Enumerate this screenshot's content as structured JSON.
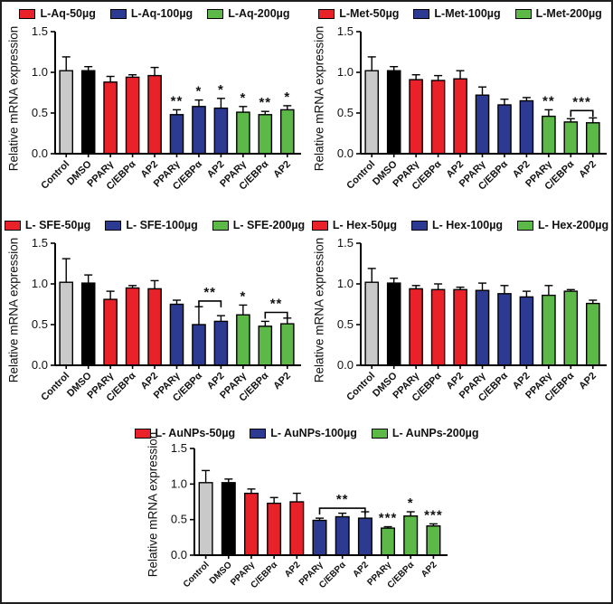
{
  "figure": {
    "background": "#ffffff",
    "border_color": "#1f1f1f"
  },
  "palette": {
    "control": "#c9c9c9",
    "dmso": "#000000",
    "dose50": "#e92128",
    "dose100": "#2c3a92",
    "dose200": "#5cb947",
    "axis": "#000000",
    "error_bar": "#000000"
  },
  "chart_data": [
    {
      "type": "bar",
      "title": "",
      "position": "top-left",
      "ylabel": "Relative mRNA expression",
      "ylim": [
        0,
        1.5
      ],
      "yticks": [
        0.0,
        0.5,
        1.0,
        1.5
      ],
      "grid": false,
      "legend_position": "top",
      "legend": [
        {
          "label": "L-Aq-50µg",
          "color_key": "dose50"
        },
        {
          "label": "L-Aq-100µg",
          "color_key": "dose100"
        },
        {
          "label": "L-Aq-200µg",
          "color_key": "dose200"
        }
      ],
      "categories": [
        "Control",
        "DMSO",
        "PPARγ",
        "C/EBPα",
        "AP2",
        "PPARγ",
        "C/EBPα",
        "AP2",
        "PPARγ",
        "C/EBPα",
        "AP2"
      ],
      "bars": [
        {
          "category": "Control",
          "group": "control",
          "value": 1.02,
          "err": 0.17,
          "sig": ""
        },
        {
          "category": "DMSO",
          "group": "dmso",
          "value": 1.02,
          "err": 0.05,
          "sig": ""
        },
        {
          "category": "PPARγ",
          "group": "dose50",
          "value": 0.88,
          "err": 0.07,
          "sig": ""
        },
        {
          "category": "C/EBPα",
          "group": "dose50",
          "value": 0.94,
          "err": 0.03,
          "sig": ""
        },
        {
          "category": "AP2",
          "group": "dose50",
          "value": 0.96,
          "err": 0.1,
          "sig": ""
        },
        {
          "category": "PPARγ",
          "group": "dose100",
          "value": 0.48,
          "err": 0.06,
          "sig": "**"
        },
        {
          "category": "C/EBPα",
          "group": "dose100",
          "value": 0.58,
          "err": 0.08,
          "sig": "*"
        },
        {
          "category": "AP2",
          "group": "dose100",
          "value": 0.56,
          "err": 0.12,
          "sig": "*"
        },
        {
          "category": "PPARγ",
          "group": "dose200",
          "value": 0.51,
          "err": 0.07,
          "sig": "*"
        },
        {
          "category": "C/EBPα",
          "group": "dose200",
          "value": 0.48,
          "err": 0.04,
          "sig": "**"
        },
        {
          "category": "AP2",
          "group": "dose200",
          "value": 0.54,
          "err": 0.05,
          "sig": "*"
        }
      ],
      "brackets": []
    },
    {
      "type": "bar",
      "title": "",
      "position": "top-right",
      "ylabel": "Relative mRNA expression",
      "ylim": [
        0,
        1.5
      ],
      "yticks": [
        0.0,
        0.5,
        1.0,
        1.5
      ],
      "grid": false,
      "legend_position": "top",
      "legend": [
        {
          "label": "L-Met-50µg",
          "color_key": "dose50"
        },
        {
          "label": "L-Met-100µg",
          "color_key": "dose100"
        },
        {
          "label": "L-Met-200µg",
          "color_key": "dose200"
        }
      ],
      "categories": [
        "Control",
        "DMSO",
        "PPARγ",
        "C/EBPα",
        "AP2",
        "PPARγ",
        "C/EBPα",
        "AP2",
        "PPARγ",
        "C/EBPα",
        "AP2"
      ],
      "bars": [
        {
          "category": "Control",
          "group": "control",
          "value": 1.02,
          "err": 0.17,
          "sig": ""
        },
        {
          "category": "DMSO",
          "group": "dmso",
          "value": 1.02,
          "err": 0.05,
          "sig": ""
        },
        {
          "category": "PPARγ",
          "group": "dose50",
          "value": 0.91,
          "err": 0.06,
          "sig": ""
        },
        {
          "category": "C/EBPα",
          "group": "dose50",
          "value": 0.9,
          "err": 0.06,
          "sig": ""
        },
        {
          "category": "AP2",
          "group": "dose50",
          "value": 0.92,
          "err": 0.1,
          "sig": ""
        },
        {
          "category": "PPARγ",
          "group": "dose100",
          "value": 0.72,
          "err": 0.1,
          "sig": ""
        },
        {
          "category": "C/EBPα",
          "group": "dose100",
          "value": 0.6,
          "err": 0.07,
          "sig": ""
        },
        {
          "category": "AP2",
          "group": "dose100",
          "value": 0.65,
          "err": 0.04,
          "sig": ""
        },
        {
          "category": "PPARγ",
          "group": "dose200",
          "value": 0.46,
          "err": 0.08,
          "sig": "**"
        },
        {
          "category": "C/EBPα",
          "group": "dose200",
          "value": 0.39,
          "err": 0.04,
          "sig": ""
        },
        {
          "category": "AP2",
          "group": "dose200",
          "value": 0.38,
          "err": 0.06,
          "sig": ""
        }
      ],
      "brackets": [
        {
          "from": 9,
          "to": 10,
          "y": 0.53,
          "sig": "***"
        }
      ]
    },
    {
      "type": "bar",
      "title": "",
      "position": "middle-left",
      "ylabel": "Relative mRNA expression",
      "ylim": [
        0,
        1.5
      ],
      "yticks": [
        0.0,
        0.5,
        1.0,
        1.5
      ],
      "grid": false,
      "legend_position": "top",
      "legend": [
        {
          "label": "L- SFE-50µg",
          "color_key": "dose50"
        },
        {
          "label": "L- SFE-100µg",
          "color_key": "dose100"
        },
        {
          "label": "L- SFE-200µg",
          "color_key": "dose200"
        }
      ],
      "categories": [
        "Control",
        "DMSO",
        "PPARγ",
        "C/EBPα",
        "AP2",
        "PPARγ",
        "C/EBPα",
        "AP2",
        "PPARγ",
        "C/EBPα",
        "AP2"
      ],
      "bars": [
        {
          "category": "Control",
          "group": "control",
          "value": 1.02,
          "err": 0.29,
          "sig": ""
        },
        {
          "category": "DMSO",
          "group": "dmso",
          "value": 1.01,
          "err": 0.1,
          "sig": ""
        },
        {
          "category": "PPARγ",
          "group": "dose50",
          "value": 0.81,
          "err": 0.1,
          "sig": ""
        },
        {
          "category": "C/EBPα",
          "group": "dose50",
          "value": 0.95,
          "err": 0.03,
          "sig": ""
        },
        {
          "category": "AP2",
          "group": "dose50",
          "value": 0.94,
          "err": 0.1,
          "sig": ""
        },
        {
          "category": "PPARγ",
          "group": "dose100",
          "value": 0.75,
          "err": 0.05,
          "sig": ""
        },
        {
          "category": "C/EBPα",
          "group": "dose100",
          "value": 0.5,
          "err": 0.22,
          "sig": ""
        },
        {
          "category": "AP2",
          "group": "dose100",
          "value": 0.54,
          "err": 0.07,
          "sig": ""
        },
        {
          "category": "PPARγ",
          "group": "dose200",
          "value": 0.62,
          "err": 0.12,
          "sig": "*"
        },
        {
          "category": "C/EBPα",
          "group": "dose200",
          "value": 0.48,
          "err": 0.06,
          "sig": ""
        },
        {
          "category": "AP2",
          "group": "dose200",
          "value": 0.51,
          "err": 0.07,
          "sig": ""
        }
      ],
      "brackets": [
        {
          "from": 6,
          "to": 7,
          "y": 0.79,
          "sig": "**"
        },
        {
          "from": 9,
          "to": 10,
          "y": 0.65,
          "sig": "**"
        }
      ]
    },
    {
      "type": "bar",
      "title": "",
      "position": "middle-right",
      "ylabel": "Relative mRNA expression",
      "ylim": [
        0,
        1.5
      ],
      "yticks": [
        0.0,
        0.5,
        1.0,
        1.5
      ],
      "grid": false,
      "legend_position": "top",
      "legend": [
        {
          "label": "L- Hex-50µg",
          "color_key": "dose50"
        },
        {
          "label": "L- Hex-100µg",
          "color_key": "dose100"
        },
        {
          "label": "L- Hex-200µg",
          "color_key": "dose200"
        }
      ],
      "categories": [
        "Control",
        "DMSO",
        "PPARγ",
        "C/EBPα",
        "AP2",
        "PPARγ",
        "C/EBPα",
        "AP2",
        "PPARγ",
        "C/EBPα",
        "AP2"
      ],
      "bars": [
        {
          "category": "Control",
          "group": "control",
          "value": 1.02,
          "err": 0.17,
          "sig": ""
        },
        {
          "category": "DMSO",
          "group": "dmso",
          "value": 1.01,
          "err": 0.06,
          "sig": ""
        },
        {
          "category": "PPARγ",
          "group": "dose50",
          "value": 0.94,
          "err": 0.04,
          "sig": ""
        },
        {
          "category": "C/EBPα",
          "group": "dose50",
          "value": 0.93,
          "err": 0.07,
          "sig": ""
        },
        {
          "category": "AP2",
          "group": "dose50",
          "value": 0.93,
          "err": 0.03,
          "sig": ""
        },
        {
          "category": "PPARγ",
          "group": "dose100",
          "value": 0.92,
          "err": 0.09,
          "sig": ""
        },
        {
          "category": "C/EBPα",
          "group": "dose100",
          "value": 0.88,
          "err": 0.1,
          "sig": ""
        },
        {
          "category": "AP2",
          "group": "dose100",
          "value": 0.84,
          "err": 0.07,
          "sig": ""
        },
        {
          "category": "PPARγ",
          "group": "dose200",
          "value": 0.86,
          "err": 0.12,
          "sig": ""
        },
        {
          "category": "C/EBPα",
          "group": "dose200",
          "value": 0.91,
          "err": 0.02,
          "sig": ""
        },
        {
          "category": "AP2",
          "group": "dose200",
          "value": 0.76,
          "err": 0.04,
          "sig": ""
        }
      ],
      "brackets": []
    },
    {
      "type": "bar",
      "title": "",
      "position": "bottom-center",
      "ylabel": "Relative mRNA expression",
      "ylim": [
        0,
        1.5
      ],
      "yticks": [
        0.0,
        0.5,
        1.0,
        1.5
      ],
      "grid": false,
      "legend_position": "top",
      "legend": [
        {
          "label": "L- AuNPs-50µg",
          "color_key": "dose50"
        },
        {
          "label": "L- AuNPs-100µg",
          "color_key": "dose100"
        },
        {
          "label": "L- AuNPs-200µg",
          "color_key": "dose200"
        }
      ],
      "categories": [
        "Control",
        "DMSO",
        "PPARγ",
        "C/EBPα",
        "AP2",
        "PPARγ",
        "C/EBPα",
        "AP2",
        "PPARγ",
        "C/EBPα",
        "AP2"
      ],
      "bars": [
        {
          "category": "Control",
          "group": "control",
          "value": 1.02,
          "err": 0.17,
          "sig": ""
        },
        {
          "category": "DMSO",
          "group": "dmso",
          "value": 1.02,
          "err": 0.05,
          "sig": ""
        },
        {
          "category": "PPARγ",
          "group": "dose50",
          "value": 0.87,
          "err": 0.06,
          "sig": ""
        },
        {
          "category": "C/EBPα",
          "group": "dose50",
          "value": 0.73,
          "err": 0.08,
          "sig": ""
        },
        {
          "category": "AP2",
          "group": "dose50",
          "value": 0.75,
          "err": 0.12,
          "sig": ""
        },
        {
          "category": "PPARγ",
          "group": "dose100",
          "value": 0.49,
          "err": 0.03,
          "sig": ""
        },
        {
          "category": "C/EBPα",
          "group": "dose100",
          "value": 0.54,
          "err": 0.05,
          "sig": ""
        },
        {
          "category": "AP2",
          "group": "dose100",
          "value": 0.52,
          "err": 0.09,
          "sig": ""
        },
        {
          "category": "PPARγ",
          "group": "dose200",
          "value": 0.38,
          "err": 0.02,
          "sig": "***"
        },
        {
          "category": "C/EBPα",
          "group": "dose200",
          "value": 0.55,
          "err": 0.06,
          "sig": "*"
        },
        {
          "category": "AP2",
          "group": "dose200",
          "value": 0.41,
          "err": 0.03,
          "sig": "***"
        }
      ],
      "brackets": [
        {
          "from": 5,
          "to": 7,
          "y": 0.66,
          "sig": "**"
        }
      ]
    }
  ]
}
